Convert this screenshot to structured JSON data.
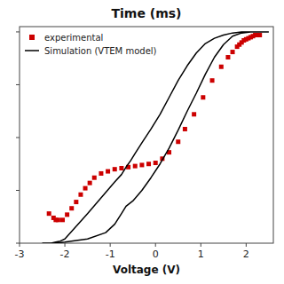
{
  "chart_data": {
    "type": "line",
    "title": "Time (ms)",
    "x_label": "Voltage (V)",
    "xlim": [
      -3,
      2.6
    ],
    "ylim": [
      -1.0,
      1.05
    ],
    "xticks": [
      -3,
      -2,
      -1,
      0,
      1,
      2
    ],
    "yticks": [
      -1,
      -0.5,
      0,
      0.5,
      1
    ],
    "tick_labels": "x",
    "grid": false,
    "legend": "upper left",
    "series": [
      {
        "name": "experimental",
        "type": "scatter",
        "marker": "square",
        "color": "#cc0000",
        "x": [
          -2.35,
          -2.25,
          -2.2,
          -2.15,
          -2.05,
          -1.95,
          -1.85,
          -1.75,
          -1.65,
          -1.55,
          -1.45,
          -1.35,
          -1.2,
          -1.05,
          -0.9,
          -0.75,
          -0.6,
          -0.45,
          -0.3,
          -0.15,
          0.0,
          0.15,
          0.3,
          0.5,
          0.65,
          0.85,
          1.05,
          1.25,
          1.45,
          1.6,
          1.7,
          1.8,
          1.85,
          1.9,
          1.95,
          2.0,
          2.05,
          2.1,
          2.15,
          2.2,
          2.25,
          2.3
        ],
        "values": [
          -0.72,
          -0.76,
          -0.78,
          -0.78,
          -0.78,
          -0.73,
          -0.67,
          -0.61,
          -0.54,
          -0.48,
          -0.43,
          -0.38,
          -0.34,
          -0.32,
          -0.3,
          -0.29,
          -0.28,
          -0.27,
          -0.26,
          -0.25,
          -0.24,
          -0.2,
          -0.14,
          -0.04,
          0.08,
          0.22,
          0.38,
          0.54,
          0.67,
          0.76,
          0.81,
          0.86,
          0.88,
          0.9,
          0.92,
          0.93,
          0.94,
          0.95,
          0.96,
          0.97,
          0.97,
          0.97
        ]
      },
      {
        "name": "Simulation (VTEM model)",
        "type": "line",
        "color": "#000000",
        "x": [
          -2.5,
          -2.4,
          -2.3,
          -2.2,
          -2.1,
          -2.0,
          -1.5,
          -0.9,
          -0.75,
          -0.65,
          -0.65,
          -0.55,
          -0.45,
          -0.3,
          -0.1,
          0.1,
          0.3,
          0.5,
          0.7,
          0.9,
          1.1,
          1.3,
          1.5,
          1.7,
          1.9,
          2.1,
          2.3,
          2.5,
          null,
          2.5,
          2.3,
          2.1,
          1.9,
          1.7,
          1.5,
          1.3,
          1.1,
          0.9,
          0.7,
          0.5,
          0.3,
          0.1,
          -0.1,
          -0.3,
          -0.5,
          -0.65,
          -0.65,
          -0.75,
          -0.9,
          -1.1,
          -1.5,
          -2.0,
          -2.2,
          -2.5
        ],
        "values": [
          -1.0,
          -1.0,
          -1.0,
          -0.99,
          -0.98,
          -0.96,
          -0.72,
          -0.42,
          -0.35,
          -0.28,
          -0.28,
          -0.22,
          -0.15,
          -0.05,
          0.08,
          0.22,
          0.38,
          0.54,
          0.68,
          0.8,
          0.89,
          0.94,
          0.97,
          0.99,
          1.0,
          1.0,
          1.0,
          1.0,
          null,
          1.0,
          1.0,
          1.0,
          0.99,
          0.96,
          0.88,
          0.76,
          0.6,
          0.42,
          0.25,
          0.07,
          -0.1,
          -0.25,
          -0.38,
          -0.5,
          -0.6,
          -0.65,
          -0.65,
          -0.72,
          -0.82,
          -0.9,
          -0.96,
          -0.99,
          -1.0,
          -1.0
        ]
      }
    ]
  }
}
